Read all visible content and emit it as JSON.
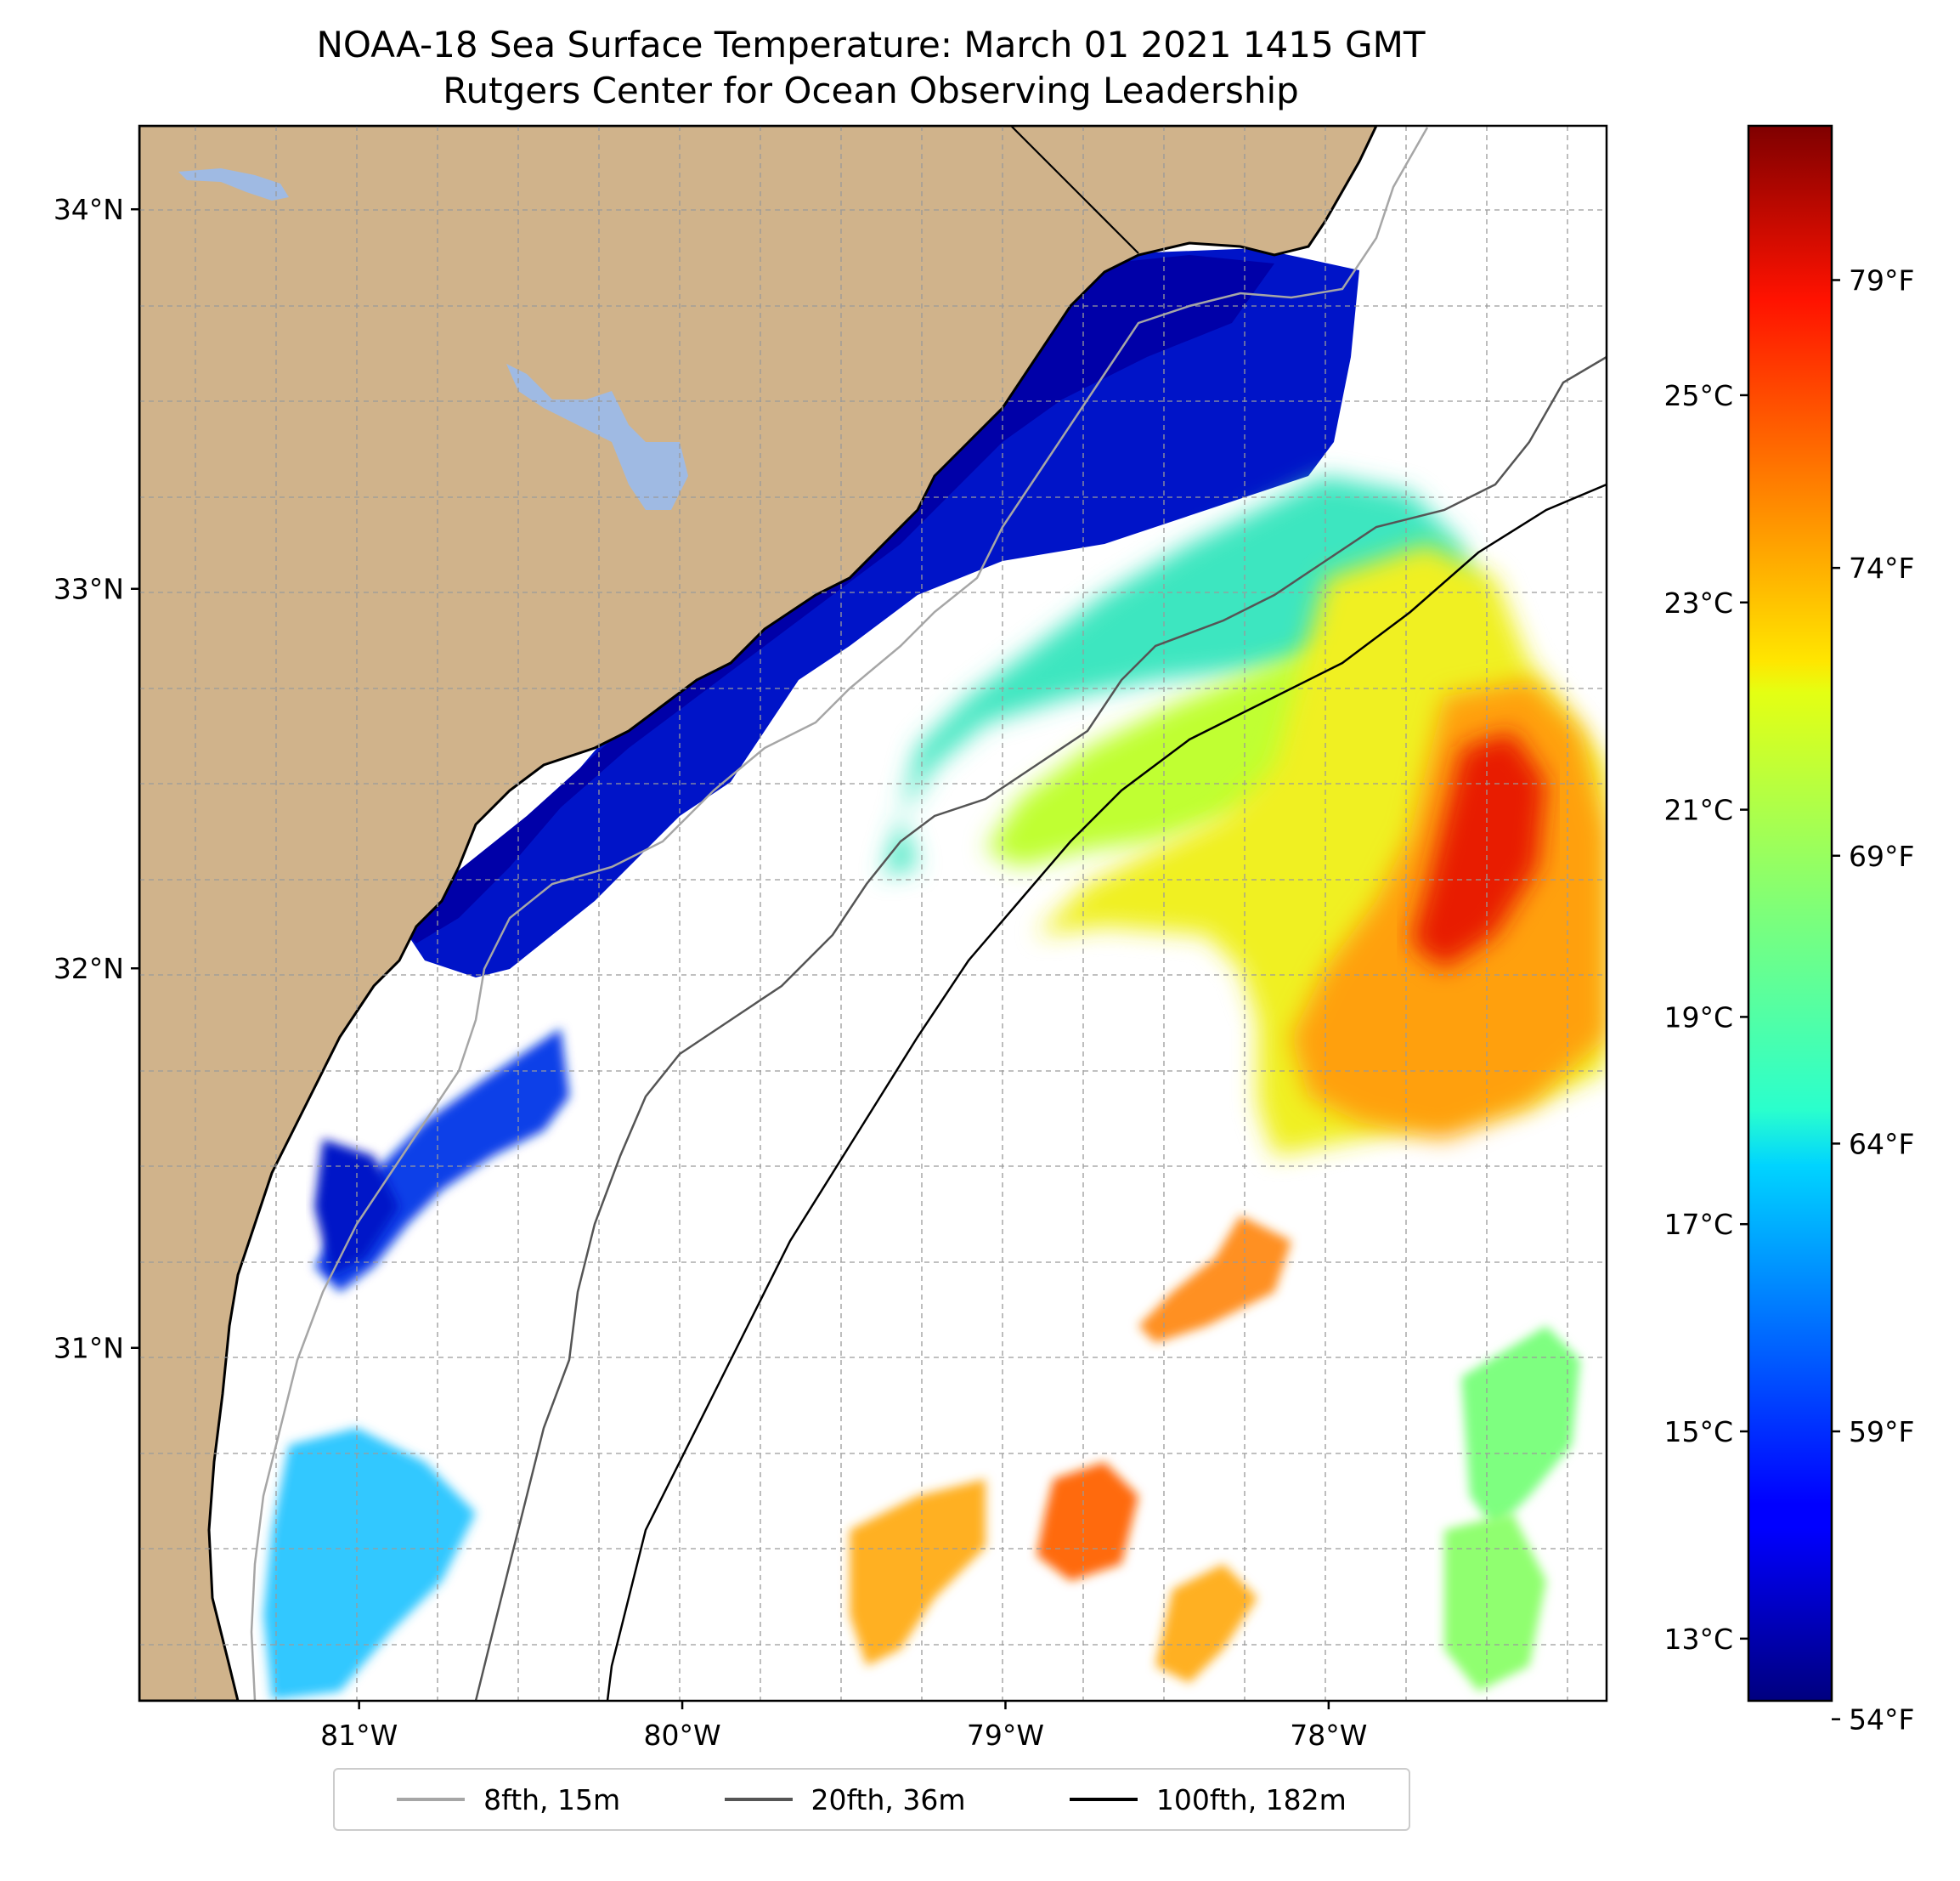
{
  "title": {
    "line1": "NOAA-18 Sea Surface Temperature: March 01 2021 1415 GMT",
    "line2": "Rutgers Center for Ocean Observing Leadership"
  },
  "map": {
    "lon_range": [
      -81.68,
      -77.14
    ],
    "lat_range": [
      30.07,
      34.22
    ],
    "lat_ticks": [
      {
        "value": 34,
        "label": "34°N"
      },
      {
        "value": 33,
        "label": "33°N"
      },
      {
        "value": 32,
        "label": "32°N"
      },
      {
        "value": 31,
        "label": "31°N"
      }
    ],
    "lon_ticks": [
      {
        "value": -81,
        "label": "81°W"
      },
      {
        "value": -80,
        "label": "80°W"
      },
      {
        "value": -79,
        "label": "79°W"
      },
      {
        "value": -78,
        "label": "78°W"
      }
    ],
    "colors": {
      "land": "#d0b38b",
      "lakes": "#9fbae3",
      "ocean_nodata": "#ffffff"
    }
  },
  "colorbar": {
    "colormap": "jet",
    "celsius_range": [
      12.4,
      27.6
    ],
    "celsius_ticks": [
      {
        "value": 13,
        "label": "13°C"
      },
      {
        "value": 15,
        "label": "15°C"
      },
      {
        "value": 17,
        "label": "17°C"
      },
      {
        "value": 19,
        "label": "19°C"
      },
      {
        "value": 21,
        "label": "21°C"
      },
      {
        "value": 23,
        "label": "23°C"
      },
      {
        "value": 25,
        "label": "25°C"
      }
    ],
    "fahrenheit_ticks": [
      {
        "value": 54,
        "label": "54°F"
      },
      {
        "value": 59,
        "label": "59°F"
      },
      {
        "value": 64,
        "label": "64°F"
      },
      {
        "value": 69,
        "label": "69°F"
      },
      {
        "value": 74,
        "label": "74°F"
      },
      {
        "value": 79,
        "label": "79°F"
      }
    ]
  },
  "legend": {
    "items": [
      {
        "label": "8fth, 15m",
        "color": "#a6a6a6"
      },
      {
        "label": "20fth, 36m",
        "color": "#555555"
      },
      {
        "label": "100fth, 182m",
        "color": "#000000"
      }
    ]
  }
}
